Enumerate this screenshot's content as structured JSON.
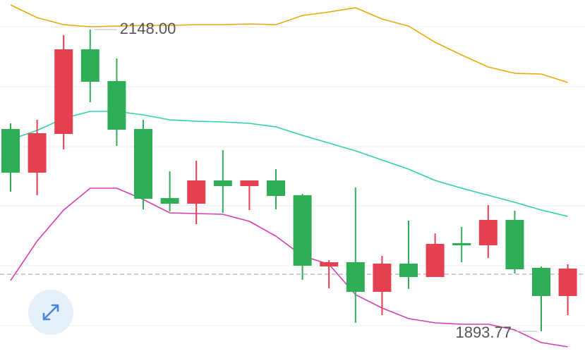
{
  "chart_data": {
    "type": "candlestick",
    "ylim": [
      1867.04,
      2172.95
    ],
    "grid_lines": [
      2150.38,
      2099.89,
      2049.4,
      1999.5,
      1949.01,
      1898.52
    ],
    "up_color": "#e5404f",
    "down_color": "#2eae57",
    "open": [
      2064.25,
      2027.42,
      2060.09,
      2131.37,
      2104.64,
      2064.25,
      2006.03,
      2001.28,
      2020.88,
      2016.13,
      2020.88,
      2008.41,
      1948.42,
      1951.98,
      1927.03,
      1950.79,
      1939.51,
      1968.02,
      1966.24,
      1987.62,
      1947.23,
      1923.47
    ],
    "high": [
      2069.0,
      2071.97,
      2143.25,
      2148.0,
      2123.65,
      2071.97,
      2028.61,
      2037.52,
      2046.43,
      2020.88,
      2030.39,
      2009.6,
      1953.76,
      2014.94,
      1957.33,
      1987.03,
      1976.33,
      1981.68,
      2000.09,
      1995.34,
      1948.42,
      1950.2
    ],
    "low": [
      2011.38,
      2008.41,
      2047.02,
      2086.82,
      2049.99,
      1996.53,
      1994.75,
      1984.06,
      1993.56,
      1995.94,
      1996.53,
      1937.13,
      1930.0,
      1900.9,
      1907.43,
      1929.41,
      1939.51,
      1951.98,
      1955.54,
      1942.48,
      1893.77,
      1907.43
    ],
    "close": [
      2027.42,
      2060.68,
      2131.37,
      2104.04,
      2063.65,
      2005.44,
      2001.28,
      2020.88,
      2016.13,
      2020.88,
      2007.82,
      1949.01,
      1951.98,
      1927.03,
      1950.79,
      1939.51,
      1967.42,
      1966.24,
      1987.62,
      1946.04,
      1923.47,
      1946.63
    ],
    "series": [
      {
        "color": "#e9a90c",
        "values": [
          2168.79,
          2158.1,
          2152.16,
          2150.38,
          2150.97,
          2151.56,
          2151.56,
          2152.16,
          2152.16,
          2152.75,
          2152.16,
          2159.88,
          2162.85,
          2166.41,
          2156.91,
          2150.97,
          2137.31,
          2126.62,
          2116.52,
          2111.17,
          2110.58,
          2103.45
        ]
      },
      {
        "color": "#2fd0a8",
        "values": [
          2055.34,
          2063.06,
          2073.16,
          2079.1,
          2079.1,
          2076.13,
          2071.97,
          2070.78,
          2070.19,
          2069.0,
          2066.03,
          2058.9,
          2052.37,
          2045.83,
          2038.11,
          2030.39,
          2020.88,
          2014.35,
          2008.41,
          2002.47,
          1995.94,
          1990.59
        ]
      },
      {
        "color": "#d63fb0",
        "values": [
          1936.54,
          1969.8,
          1995.94,
          2014.35,
          2014.35,
          2004.85,
          1993.56,
          1992.97,
          1992.37,
          1986.43,
          1973.96,
          1957.33,
          1950.2,
          1924.66,
          1913.37,
          1904.46,
          1900.9,
          1899.71,
          1899.71,
          1894.96,
          1884.26,
          1880.7
        ]
      }
    ],
    "last_price": 1941.88,
    "annotations": [
      {
        "label": "2148.00",
        "value": 2148.0,
        "index": 3,
        "side": "right"
      },
      {
        "label": "1893.77",
        "value": 1893.77,
        "index": 20,
        "side": "left"
      }
    ]
  }
}
